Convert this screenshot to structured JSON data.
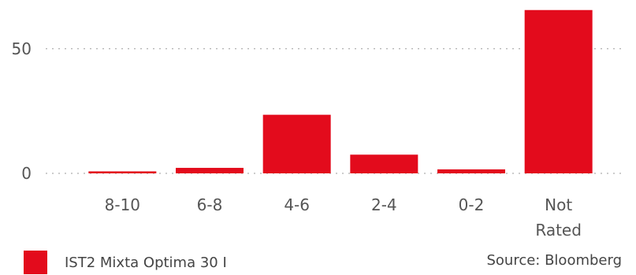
{
  "chart_data": {
    "type": "bar",
    "categories": [
      "8-10",
      "6-8",
      "4-6",
      "2-4",
      "0-2",
      "Not Rated"
    ],
    "series": [
      {
        "name": "IST2 Mixta Optima 30 I",
        "values": [
          0.8,
          2.2,
          23.5,
          7.5,
          1.6,
          65.5
        ]
      }
    ],
    "yticks": [
      0,
      50
    ],
    "ylim": [
      0,
      67
    ],
    "grid": true,
    "legend_position": "bottom-left",
    "bar_color": "#e30b1c",
    "gridline_color": "#bbbbbb"
  },
  "legend": {
    "label": "IST2 Mixta Optima 30 I",
    "color": "#e30b1c"
  },
  "source": {
    "text": "Source: Bloomberg"
  }
}
